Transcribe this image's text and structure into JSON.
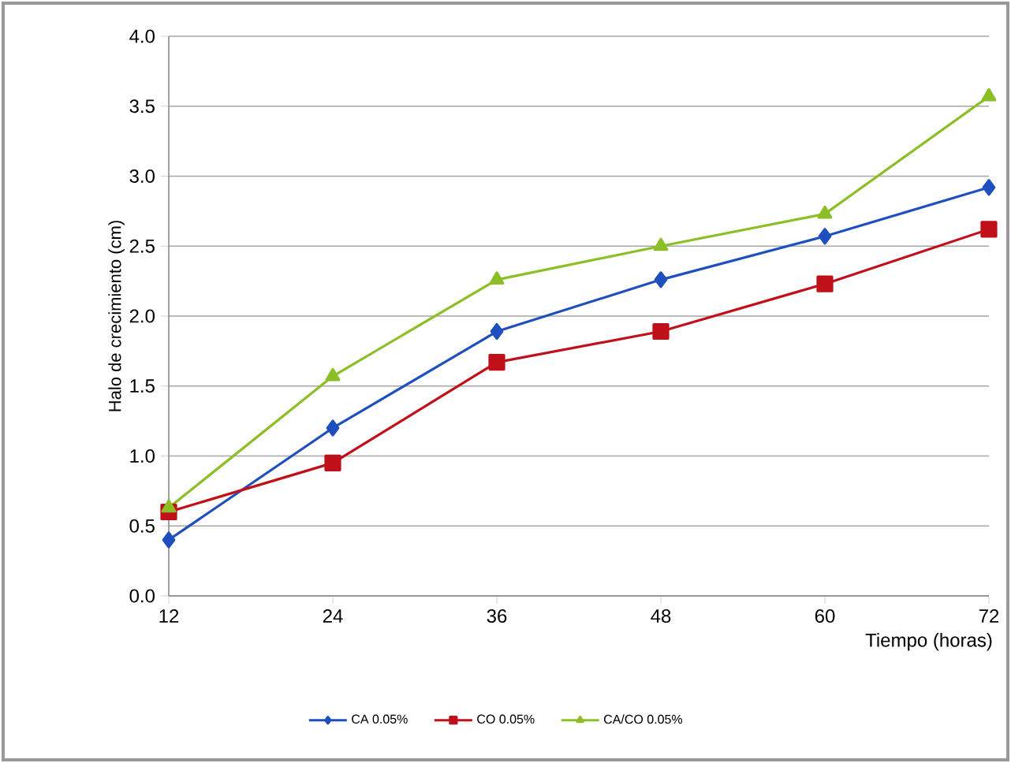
{
  "chart_data": {
    "type": "line",
    "xlabel": "Tiempo (horas)",
    "ylabel": "Halo de crecimiento (cm)",
    "categories": [
      "12",
      "24",
      "36",
      "48",
      "60",
      "72"
    ],
    "series": [
      {
        "name": "CA 0.05%",
        "color": "#1f4fbf",
        "marker": "diamond",
        "values": [
          0.4,
          1.2,
          1.89,
          2.26,
          2.57,
          2.92
        ]
      },
      {
        "name": "CO 0.05%",
        "color": "#c0101a",
        "marker": "square",
        "values": [
          0.6,
          0.95,
          1.67,
          1.89,
          2.23,
          2.62
        ]
      },
      {
        "name": "CA/CO 0.05%",
        "color": "#8cbf26",
        "marker": "triangle",
        "values": [
          0.63,
          1.57,
          2.26,
          2.5,
          2.73,
          3.57
        ]
      }
    ],
    "ylim": [
      0,
      4
    ],
    "yticks": [
      {
        "value": 0,
        "label": "0.0"
      },
      {
        "value": 0.5,
        "label": "0.5"
      },
      {
        "value": 1,
        "label": "1.0"
      },
      {
        "value": 1.5,
        "label": "1.5"
      },
      {
        "value": 2,
        "label": "2.0"
      },
      {
        "value": 2.5,
        "label": "2.5"
      },
      {
        "value": 3,
        "label": "3.0"
      },
      {
        "value": 3.5,
        "label": "3.5"
      },
      {
        "value": 4,
        "label": "4.0"
      }
    ],
    "grid": "y",
    "legend": "bottom",
    "line_style": "solid"
  }
}
